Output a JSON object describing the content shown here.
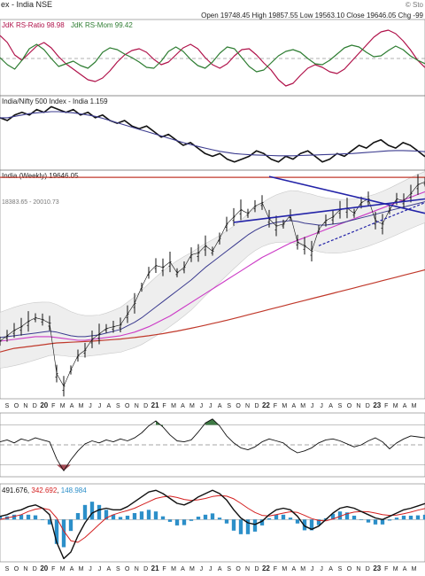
{
  "header": {
    "title": "ex - India NSE",
    "ohlc": "Open 19748.45  High 19857.55  Low 19563.10  Close 19646.05  Chg -99",
    "watermark": "© Sto"
  },
  "chart_data": [
    {
      "id": "rrg",
      "type": "line",
      "title": "JdK RS-Ratio 98.98",
      "title2": "JdK RS-Mom 99.42",
      "series": [
        {
          "name": "JdK RS-Ratio",
          "color": "#b0124a",
          "values": [
            102.6,
            101.8,
            100.4,
            99.8,
            100.6,
            101.4,
            101.8,
            101.2,
            100.2,
            99.4,
            98.8,
            98.2,
            97.6,
            97.4,
            97.8,
            98.6,
            99.6,
            100.4,
            100.9,
            101.1,
            100.7,
            99.9,
            99.3,
            99.6,
            100.4,
            101.2,
            101.6,
            101.1,
            100.1,
            99.3,
            98.9,
            99.4,
            100.3,
            101.0,
            101.1,
            100.4,
            99.5,
            98.7,
            97.6,
            96.9,
            97.2,
            98.1,
            98.9,
            99.3,
            99.0,
            98.5,
            98.3,
            98.8,
            99.7,
            100.6,
            101.5,
            102.4,
            103.0,
            103.2,
            102.8,
            102.0,
            101.0,
            99.8,
            98.98
          ]
        },
        {
          "name": "JdK RS-Mom",
          "color": "#2e7d32",
          "values": [
            100.1,
            99.3,
            98.8,
            99.8,
            101.1,
            101.6,
            101.0,
            100.0,
            99.1,
            99.4,
            99.7,
            99.2,
            98.9,
            99.6,
            100.7,
            101.2,
            101.0,
            100.5,
            100.1,
            99.6,
            99.0,
            98.9,
            99.7,
            100.8,
            101.3,
            100.8,
            99.9,
            99.2,
            98.9,
            99.6,
            100.6,
            101.3,
            101.1,
            100.1,
            99.1,
            98.5,
            98.7,
            99.5,
            100.3,
            100.8,
            101.0,
            100.7,
            100.0,
            99.4,
            99.3,
            99.8,
            100.5,
            101.2,
            101.5,
            101.3,
            100.7,
            100.2,
            100.3,
            100.9,
            101.4,
            101.0,
            100.3,
            99.8,
            99.42
          ]
        }
      ]
    },
    {
      "id": "relative",
      "type": "line",
      "title": "India/Nifty 500 Index - India 1.159",
      "series": [
        {
          "name": "India/Nifty 500 Index - India",
          "color": "#111111",
          "values": [
            1.3,
            1.29,
            1.31,
            1.32,
            1.31,
            1.33,
            1.32,
            1.34,
            1.33,
            1.32,
            1.33,
            1.31,
            1.32,
            1.3,
            1.31,
            1.29,
            1.28,
            1.29,
            1.27,
            1.26,
            1.27,
            1.25,
            1.23,
            1.24,
            1.22,
            1.2,
            1.21,
            1.19,
            1.17,
            1.16,
            1.17,
            1.15,
            1.14,
            1.15,
            1.16,
            1.18,
            1.17,
            1.15,
            1.14,
            1.16,
            1.15,
            1.17,
            1.18,
            1.16,
            1.14,
            1.15,
            1.17,
            1.16,
            1.18,
            1.2,
            1.19,
            1.21,
            1.22,
            1.2,
            1.19,
            1.21,
            1.2,
            1.18,
            1.159
          ]
        },
        {
          "name": "MA",
          "color": "#3b3b8f",
          "values": [
            1.3,
            1.3,
            1.305,
            1.31,
            1.315,
            1.318,
            1.32,
            1.322,
            1.322,
            1.32,
            1.318,
            1.314,
            1.31,
            1.305,
            1.298,
            1.29,
            1.282,
            1.274,
            1.266,
            1.258,
            1.25,
            1.242,
            1.234,
            1.226,
            1.218,
            1.21,
            1.203,
            1.196,
            1.19,
            1.184,
            1.178,
            1.174,
            1.17,
            1.168,
            1.166,
            1.165,
            1.164,
            1.163,
            1.162,
            1.162,
            1.162,
            1.163,
            1.164,
            1.165,
            1.166,
            1.167,
            1.168,
            1.169,
            1.17,
            1.172,
            1.174,
            1.176,
            1.178,
            1.18,
            1.181,
            1.181,
            1.18,
            1.179,
            1.177
          ]
        }
      ]
    },
    {
      "id": "price",
      "type": "line",
      "title": "India (Weekly) 19646.05",
      "band_label": "18383.65 - 20010.73",
      "resistance": 19900,
      "x_ticks": [
        "S",
        "O",
        "N",
        "D",
        "20",
        "F",
        "M",
        "A",
        "M",
        "J",
        "J",
        "A",
        "S",
        "O",
        "N",
        "D",
        "21",
        "F",
        "M",
        "A",
        "M",
        "J",
        "J",
        "A",
        "S",
        "O",
        "N",
        "D",
        "22",
        "F",
        "M",
        "A",
        "M",
        "J",
        "J",
        "A",
        "S",
        "O",
        "N",
        "D",
        "23",
        "F",
        "M",
        "A",
        "M"
      ],
      "series": [
        {
          "name": "Price",
          "color": "#111111",
          "values": [
            10800,
            11100,
            11400,
            11600,
            11900,
            12100,
            12000,
            11800,
            9000,
            8300,
            9200,
            10000,
            10300,
            10900,
            11200,
            11500,
            11600,
            11700,
            12300,
            12900,
            13800,
            14600,
            15000,
            14900,
            15200,
            14600,
            14900,
            15600,
            15700,
            16100,
            15800,
            16500,
            17300,
            17700,
            18100,
            17900,
            18300,
            18500,
            17600,
            17200,
            17300,
            17800,
            16300,
            16100,
            15800,
            17000,
            17500,
            17700,
            18100,
            18200,
            17900,
            18500,
            18700,
            17500,
            17300,
            18100,
            18700,
            18600,
            19000,
            19500,
            19646.05
          ]
        },
        {
          "name": "MA1",
          "color": "#3b3b8f",
          "values": [
            11000,
            11050,
            11100,
            11150,
            11200,
            11250,
            11300,
            11350,
            11300,
            11200,
            11100,
            11050,
            11050,
            11100,
            11150,
            11250,
            11350,
            11450,
            11650,
            11850,
            12100,
            12400,
            12700,
            13000,
            13300,
            13600,
            13900,
            14200,
            14550,
            14900,
            15200,
            15500,
            15800,
            16100,
            16400,
            16700,
            16950,
            17150,
            17300,
            17400,
            17450,
            17500,
            17450,
            17350,
            17300,
            17250,
            17250,
            17300,
            17350,
            17450,
            17550,
            17650,
            17750,
            17850,
            17950,
            18050,
            18150,
            18250,
            18350,
            18450,
            18550
          ]
        },
        {
          "name": "MA2",
          "color": "#cc3ac6",
          "values": [
            10800,
            10850,
            10900,
            10950,
            11000,
            11050,
            11050,
            11050,
            11000,
            10950,
            10900,
            10850,
            10850,
            10900,
            10950,
            11000,
            11050,
            11100,
            11200,
            11300,
            11450,
            11600,
            11800,
            12000,
            12200,
            12450,
            12700,
            12950,
            13200,
            13450,
            13700,
            13950,
            14200,
            14450,
            14700,
            14950,
            15200,
            15450,
            15650,
            15850,
            16050,
            16250,
            16400,
            16550,
            16700,
            16850,
            17000,
            17150,
            17300,
            17450,
            17600,
            17750,
            17900,
            18050,
            18200,
            18350,
            18500,
            18650,
            18800,
            18950,
            19100
          ]
        },
        {
          "name": "MA3",
          "color": "#c0392b",
          "values": [
            10200,
            10300,
            10400,
            10450,
            10500,
            10550,
            10600,
            10650,
            10700,
            10720,
            10740,
            10760,
            10780,
            10800,
            10830,
            10860,
            10890,
            10920,
            10960,
            11000,
            11050,
            11100,
            11160,
            11220,
            11290,
            11360,
            11440,
            11520,
            11600,
            11690,
            11780,
            11870,
            11960,
            12060,
            12160,
            12260,
            12360,
            12460,
            12560,
            12660,
            12760,
            12860,
            12960,
            13060,
            13160,
            13260,
            13360,
            13460,
            13560,
            13660,
            13760,
            13860,
            13960,
            14060,
            14160,
            14260,
            14360,
            14460,
            14560,
            14660,
            14760
          ]
        }
      ]
    },
    {
      "id": "osc",
      "type": "area",
      "series": [
        {
          "name": "Oscillator",
          "color": "#111111",
          "values": [
            0.3,
            0.5,
            0.2,
            0.6,
            0.4,
            0.7,
            0.5,
            0.3,
            -1.4,
            -2.6,
            -1.5,
            -0.6,
            0.1,
            0.4,
            0.2,
            0.5,
            0.3,
            0.6,
            0.4,
            0.7,
            1.2,
            1.9,
            2.4,
            1.8,
            1.0,
            0.4,
            0.3,
            0.5,
            1.3,
            2.2,
            2.6,
            1.9,
            0.9,
            0.2,
            -0.3,
            -0.5,
            -0.2,
            0.3,
            0.6,
            0.4,
            0.2,
            -0.4,
            -0.8,
            -0.6,
            -0.3,
            0.2,
            0.5,
            0.6,
            0.4,
            0.1,
            -0.2,
            0.0,
            0.4,
            0.7,
            0.3,
            -0.4,
            0.2,
            0.6,
            0.9,
            0.8,
            0.7
          ]
        }
      ]
    },
    {
      "id": "macd",
      "type": "line",
      "title": "491.676, 342.692, 148.984",
      "series": [
        {
          "name": "491.676",
          "color": "#111111",
          "values": [
            100,
            150,
            250,
            300,
            400,
            450,
            350,
            150,
            -700,
            -1200,
            -1000,
            -500,
            -100,
            200,
            300,
            350,
            300,
            300,
            400,
            550,
            700,
            850,
            900,
            800,
            650,
            500,
            450,
            550,
            700,
            800,
            900,
            800,
            600,
            300,
            50,
            -100,
            -150,
            -50,
            150,
            300,
            350,
            300,
            100,
            -200,
            -300,
            -200,
            0,
            200,
            350,
            400,
            350,
            250,
            150,
            50,
            0,
            100,
            200,
            300,
            350,
            420,
            491.676
          ]
        },
        {
          "name": "342.692",
          "color": "#d42020",
          "values": [
            0,
            50,
            100,
            150,
            250,
            320,
            350,
            300,
            50,
            -350,
            -650,
            -700,
            -550,
            -350,
            -150,
            50,
            150,
            220,
            280,
            350,
            450,
            550,
            650,
            700,
            720,
            680,
            620,
            590,
            610,
            650,
            710,
            740,
            720,
            640,
            500,
            350,
            220,
            130,
            110,
            150,
            200,
            240,
            220,
            130,
            30,
            -30,
            -40,
            20,
            100,
            180,
            230,
            250,
            240,
            200,
            150,
            130,
            140,
            180,
            230,
            290,
            342.692
          ]
        },
        {
          "name": "148.984",
          "color": "#2c8fc9",
          "values": [
            100,
            100,
            150,
            150,
            150,
            130,
            0,
            -150,
            -750,
            -850,
            -350,
            200,
            450,
            550,
            450,
            300,
            150,
            80,
            120,
            200,
            250,
            300,
            250,
            100,
            -70,
            -180,
            -170,
            -40,
            90,
            150,
            190,
            60,
            -120,
            -340,
            -450,
            -450,
            -370,
            -180,
            40,
            150,
            150,
            60,
            -120,
            -330,
            -330,
            -170,
            40,
            180,
            250,
            220,
            120,
            0,
            -90,
            -150,
            -150,
            -30,
            60,
            120,
            120,
            130,
            148.984
          ]
        }
      ]
    }
  ]
}
